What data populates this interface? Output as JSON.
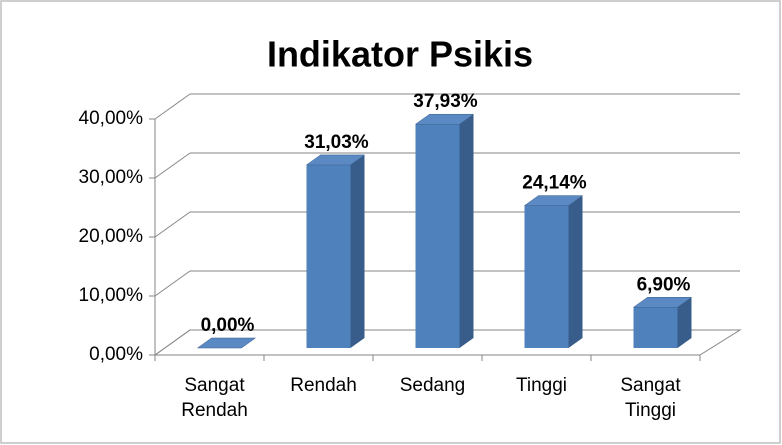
{
  "chart_data": {
    "type": "bar3d",
    "title": "Indikator Psikis",
    "categories": [
      "Sangat Rendah",
      "Rendah",
      "Sedang",
      "Tinggi",
      "Sangat Tinggi"
    ],
    "values": [
      0,
      31.03,
      37.93,
      24.14,
      6.9
    ],
    "value_labels": [
      "0,00%",
      "31,03%",
      "37,93%",
      "24,14%",
      "6,90%"
    ],
    "color": "#4f81bd",
    "ylim": [
      0,
      40
    ],
    "yticks": [
      {
        "value": 0,
        "label": "0,00%"
      },
      {
        "value": 10,
        "label": "10,00%"
      },
      {
        "value": 20,
        "label": "20,00%"
      },
      {
        "value": 30,
        "label": "30,00%"
      },
      {
        "value": 40,
        "label": "40,00%"
      }
    ],
    "grid": true
  }
}
